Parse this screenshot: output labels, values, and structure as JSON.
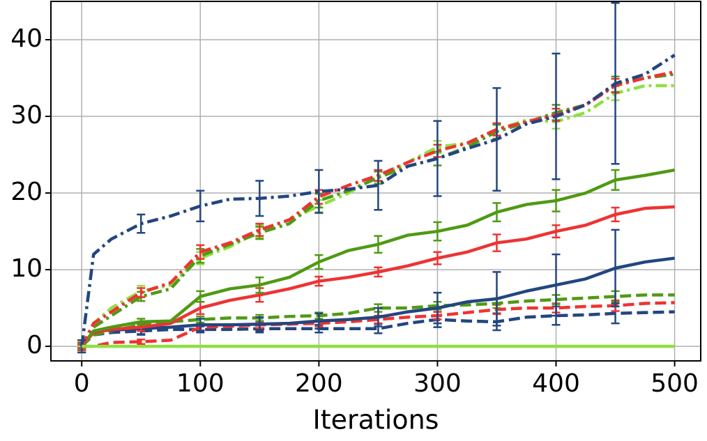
{
  "chart_data": {
    "type": "line",
    "xlabel": "Iterations",
    "x": [
      0,
      10,
      25,
      50,
      75,
      100,
      125,
      150,
      175,
      200,
      225,
      250,
      275,
      300,
      325,
      350,
      375,
      400,
      425,
      450,
      475,
      500
    ],
    "xlim": [
      -26,
      522
    ],
    "xticks": [
      0,
      100,
      200,
      300,
      400,
      500
    ],
    "ylim": [
      -1.9,
      45
    ],
    "yticks": [
      0,
      10,
      20,
      30,
      40
    ],
    "grid": true,
    "series": [
      {
        "color": "#23467f",
        "linestyle": "dashed",
        "values": [
          0,
          1.5,
          1.8,
          2,
          2.2,
          2.2,
          2.2,
          2.3,
          2.3,
          2.3,
          2.3,
          2.3,
          3,
          3.5,
          3.3,
          3.2,
          3.8,
          4,
          4.1,
          4.3,
          4.4,
          4.5
        ],
        "errors": [
          0.3,
          null,
          null,
          0.4,
          null,
          0.4,
          null,
          0.5,
          null,
          0.5,
          null,
          0.6,
          null,
          1,
          null,
          1.1,
          null,
          1.2,
          null,
          1.3,
          null,
          null
        ]
      },
      {
        "color": "#ee3333",
        "linestyle": "dashed",
        "values": [
          0,
          0,
          0.5,
          0.6,
          0.8,
          2.5,
          2.6,
          2.8,
          2.9,
          3,
          3.2,
          3.5,
          3.8,
          4,
          4.4,
          4.8,
          5,
          5,
          5.2,
          5.3,
          5.6,
          5.7
        ],
        "errors": [
          0.2,
          null,
          null,
          0.3,
          null,
          0.4,
          null,
          0.4,
          null,
          0.4,
          null,
          0.5,
          null,
          0.5,
          null,
          0.6,
          null,
          0.6,
          null,
          0.7,
          null,
          null
        ]
      },
      {
        "color": "#4f9a14",
        "linestyle": "dashed",
        "values": [
          0,
          1.5,
          2,
          2.8,
          3.2,
          3.5,
          3.7,
          3.7,
          3.9,
          4,
          4.3,
          5,
          5,
          5.3,
          5.4,
          5.6,
          5.9,
          6.1,
          6.3,
          6.5,
          6.7,
          6.7
        ],
        "errors": [
          0.2,
          null,
          null,
          0.3,
          null,
          0.4,
          null,
          0.4,
          null,
          0.4,
          null,
          0.5,
          null,
          0.5,
          null,
          0.6,
          null,
          0.6,
          null,
          0.7,
          null,
          null
        ]
      },
      {
        "color": "#23467f",
        "linestyle": "solid",
        "values": [
          0,
          2,
          2.1,
          2.3,
          2.5,
          2.8,
          2.8,
          2.9,
          3,
          3.3,
          3.5,
          3.8,
          4.5,
          5,
          5.8,
          6.2,
          7.2,
          8,
          8.8,
          10.2,
          11,
          11.5
        ],
        "errors": [
          0.8,
          null,
          null,
          0.8,
          null,
          0.8,
          null,
          0.9,
          null,
          1,
          null,
          1.2,
          null,
          2,
          null,
          3.5,
          null,
          4,
          null,
          5,
          null,
          null
        ]
      },
      {
        "color": "#ee3333",
        "linestyle": "solid",
        "values": [
          0,
          1.8,
          2.2,
          2.5,
          3,
          5,
          6,
          6.7,
          7.5,
          8.5,
          9,
          9.7,
          10.5,
          11.5,
          12.3,
          13.5,
          14,
          15,
          15.8,
          17.2,
          18,
          18.2
        ],
        "errors": [
          0.3,
          null,
          null,
          0.5,
          null,
          0.8,
          null,
          0.9,
          null,
          0.6,
          null,
          0.6,
          null,
          0.8,
          null,
          1.1,
          null,
          0.8,
          null,
          0.9,
          null,
          null
        ]
      },
      {
        "color": "#4f9a14",
        "linestyle": "solid",
        "values": [
          0,
          2,
          2.5,
          3.2,
          3.3,
          6.5,
          7.5,
          8,
          9,
          11,
          12.5,
          13.3,
          14.5,
          15,
          15.8,
          17.5,
          18.5,
          19,
          20,
          21.7,
          22.3,
          23
        ],
        "errors": [
          0.4,
          null,
          null,
          0.4,
          null,
          0.7,
          null,
          1,
          null,
          0.9,
          null,
          1.1,
          null,
          1.2,
          null,
          1.2,
          null,
          1.4,
          null,
          1.3,
          null,
          null
        ]
      },
      {
        "color": "#8ee040",
        "linestyle": "dashdot",
        "values": [
          0,
          3,
          5,
          7.2,
          8,
          11.5,
          13,
          15,
          16.5,
          18.3,
          20,
          22.2,
          24,
          26,
          26.5,
          28.3,
          29.5,
          29.3,
          30.5,
          33,
          34,
          34
        ],
        "errors": [
          0.5,
          null,
          null,
          0.7,
          null,
          0.8,
          null,
          0.8,
          null,
          0.8,
          null,
          0.7,
          null,
          0.8,
          null,
          0.8,
          null,
          0.9,
          null,
          0.9,
          null,
          null
        ]
      },
      {
        "color": "#4f9a14",
        "linestyle": "dashdot",
        "values": [
          0,
          2.5,
          4,
          6.5,
          7.5,
          11.8,
          13.3,
          14.8,
          16,
          19,
          20.3,
          22,
          23.5,
          24.5,
          26,
          28,
          29.2,
          30.5,
          31.5,
          34.2,
          35,
          35.5
        ],
        "errors": [
          0.5,
          null,
          null,
          0.6,
          null,
          0.9,
          null,
          0.8,
          null,
          0.9,
          null,
          0.8,
          null,
          0.9,
          null,
          0.9,
          null,
          1,
          null,
          1,
          null,
          null
        ]
      },
      {
        "color": "#ee3333",
        "linestyle": "dashdot",
        "values": [
          0,
          3,
          4.5,
          7,
          8.3,
          12.3,
          13.5,
          15.2,
          16.5,
          19.5,
          21,
          22.3,
          24,
          25.5,
          26.5,
          28.3,
          29.3,
          30.2,
          31.5,
          34,
          35,
          35.8
        ],
        "errors": [
          0.5,
          null,
          null,
          0.6,
          null,
          0.9,
          null,
          0.8,
          null,
          0.9,
          null,
          0.7,
          null,
          0.8,
          null,
          0.8,
          null,
          0.8,
          null,
          0.9,
          null,
          null
        ]
      },
      {
        "color": "#23467f",
        "linestyle": "dashdot",
        "values": [
          0,
          12,
          14,
          16,
          17,
          18.3,
          19.2,
          19.3,
          19.6,
          20.2,
          20.5,
          21,
          23.5,
          24.5,
          25.8,
          27,
          29,
          30,
          31.5,
          34.3,
          35.5,
          38
        ],
        "errors": [
          0.8,
          null,
          null,
          1.2,
          null,
          2,
          null,
          2.3,
          null,
          2.8,
          null,
          3.2,
          null,
          4.9,
          null,
          6.7,
          null,
          8.2,
          null,
          10.5,
          null,
          null
        ]
      },
      {
        "color": "#8ee040",
        "linestyle": "solid",
        "values": [
          0,
          0,
          0,
          0,
          0,
          0,
          0,
          0,
          0,
          0,
          0,
          0,
          0,
          0,
          0,
          0,
          0,
          0,
          0,
          0,
          0,
          0
        ]
      }
    ]
  }
}
